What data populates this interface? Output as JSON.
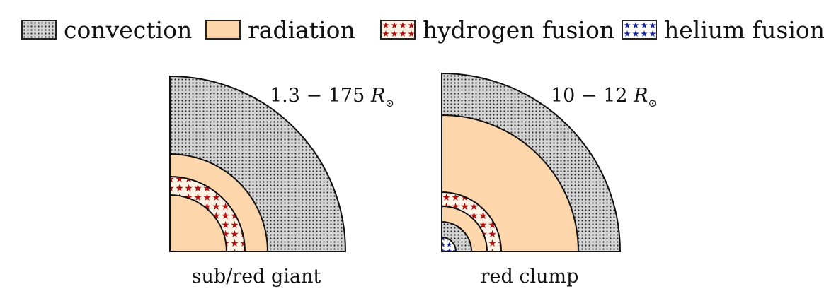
{
  "legend": {
    "convection": "convection",
    "radiation": "radiation",
    "hydrogen_fusion": "hydrogen fusion",
    "helium_fusion": "helium fusion"
  },
  "diagrams": [
    {
      "radius_label_main": "1.3 − 175 ",
      "radius_label_symbol": "R",
      "caption": "sub/red giant"
    },
    {
      "radius_label_main": "10 − 12 ",
      "radius_label_symbol": "R",
      "caption": "red clump"
    }
  ],
  "colors": {
    "radiation": "#fdd6ac",
    "convection_bg": "#d4d4d4",
    "convection_dot": "#2a2a2a",
    "hydrogen_bg": "#fff3e6",
    "hydrogen_star": "#b01010",
    "helium_bg": "#ffffff",
    "helium_star": "#1a2a9a",
    "outline": "#111111"
  }
}
